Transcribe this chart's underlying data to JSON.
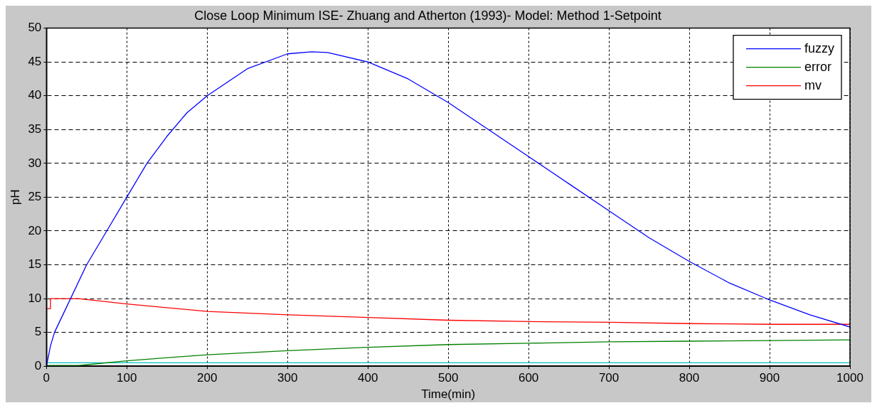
{
  "chart_data": {
    "type": "line",
    "title": "Close Loop Minimum ISE- Zhuang and Atherton (1993)- Model: Method 1-Setpoint",
    "xlabel": "Time(min)",
    "ylabel": "pH",
    "xlim": [
      0,
      1000
    ],
    "xticks": [
      0,
      100,
      200,
      300,
      400,
      500,
      600,
      700,
      800,
      900,
      1000
    ],
    "ylim": [
      0,
      50
    ],
    "yticks": [
      0,
      5,
      10,
      15,
      20,
      25,
      30,
      35,
      40,
      45,
      50
    ],
    "grid": true,
    "legend": "top right",
    "marker": "none",
    "line_style": "solid",
    "series": [
      {
        "name": "fuzzy",
        "color": "#0000ff",
        "x": [
          0,
          5,
          10,
          20,
          50,
          75,
          100,
          125,
          150,
          175,
          200,
          250,
          300,
          330,
          350,
          400,
          450,
          500,
          550,
          600,
          650,
          700,
          750,
          800,
          850,
          900,
          950,
          1000
        ],
        "values": [
          0,
          3,
          5,
          7.5,
          15,
          20,
          25,
          30,
          34,
          37.5,
          40,
          44,
          46.2,
          46.5,
          46.4,
          45,
          42.5,
          39,
          35,
          31,
          27,
          23,
          19,
          15.5,
          12.3,
          9.8,
          7.6,
          5.8
        ]
      },
      {
        "name": "error",
        "color": "#008000",
        "x": [
          0,
          40,
          100,
          200,
          300,
          400,
          500,
          600,
          700,
          800,
          900,
          1000
        ],
        "values": [
          0.1,
          0.1,
          0.8,
          1.7,
          2.3,
          2.8,
          3.2,
          3.4,
          3.6,
          3.7,
          3.8,
          3.9
        ]
      },
      {
        "name": "mv",
        "color": "#ff0000",
        "x": [
          0,
          5,
          5,
          40,
          100,
          200,
          300,
          400,
          500,
          600,
          700,
          800,
          900,
          1000
        ],
        "values": [
          8.5,
          8.5,
          10,
          10,
          9.2,
          8.1,
          7.6,
          7.2,
          6.8,
          6.6,
          6.5,
          6.3,
          6.2,
          6.2
        ]
      },
      {
        "color": "#00c0c0",
        "x": [
          0,
          1000
        ],
        "values": [
          0.5,
          0.5
        ]
      }
    ]
  }
}
